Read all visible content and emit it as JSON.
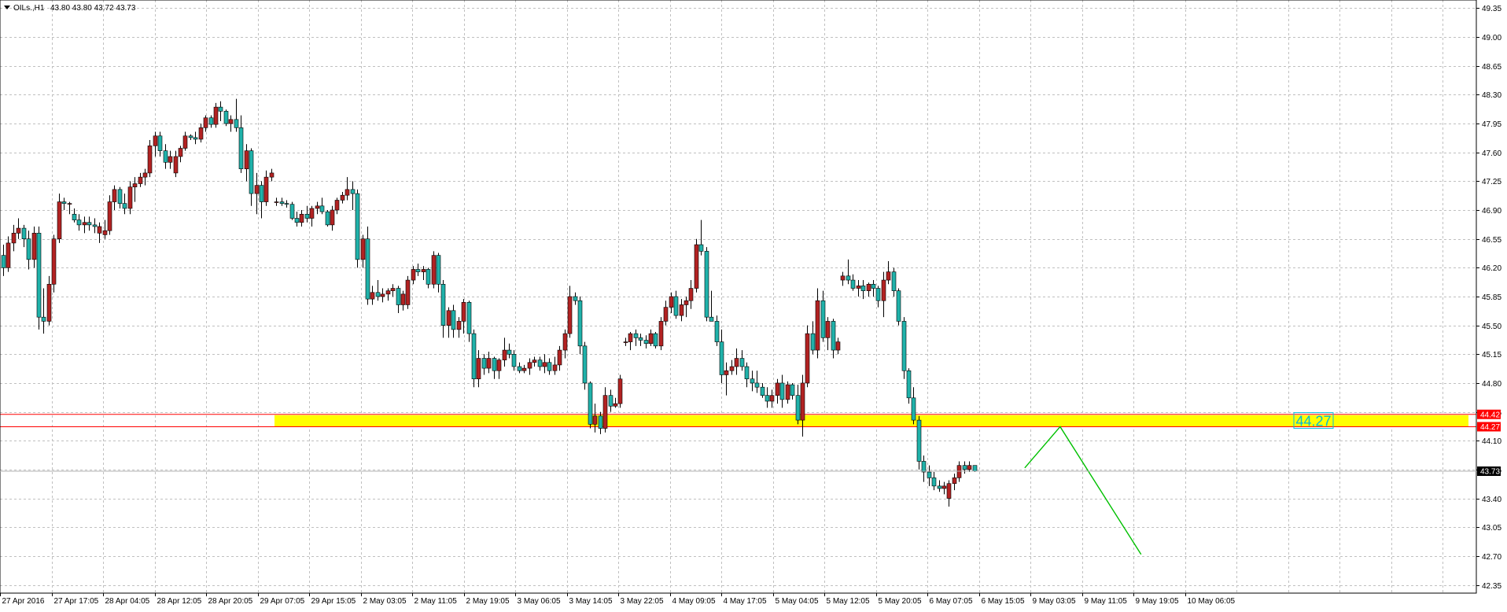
{
  "header": {
    "dropdown_icon": "triangle-down-icon",
    "symbol": "OILs.,H1",
    "ohlc": "43.80 43.80 43.72 43.73"
  },
  "chart_data": {
    "type": "candlestick",
    "symbol": "OILs.,H1",
    "timeframe": "H1",
    "title": "",
    "xlabel": "",
    "ylabel": "",
    "ylim": [
      42.25,
      49.45
    ],
    "y_ticks": [
      49.35,
      49.0,
      48.65,
      48.3,
      47.95,
      47.6,
      47.25,
      46.9,
      46.55,
      46.2,
      45.85,
      45.5,
      45.15,
      44.8,
      44.45,
      44.1,
      43.75,
      43.4,
      43.05,
      42.7,
      42.35
    ],
    "y_tick_labels": [
      "49.35",
      "49.00",
      "48.65",
      "48.30",
      "47.95",
      "47.60",
      "47.25",
      "46.90",
      "46.55",
      "46.20",
      "45.85",
      "45.50",
      "45.15",
      "44.80",
      "44.45",
      "44.10",
      "43.75",
      "43.40",
      "43.05",
      "42.70",
      "42.35"
    ],
    "x_tick_labels": [
      "27 Apr 2016",
      "27 Apr 17:05",
      "28 Apr 04:05",
      "28 Apr 12:05",
      "28 Apr 20:05",
      "29 Apr 07:05",
      "29 Apr 15:05",
      "2 May 03:05",
      "2 May 11:05",
      "2 May 19:05",
      "3 May 06:05",
      "3 May 14:05",
      "3 May 22:05",
      "4 May 09:05",
      "4 May 17:05",
      "5 May 04:05",
      "5 May 12:05",
      "5 May 20:05",
      "6 May 07:05",
      "6 May 15:05",
      "9 May 03:05",
      "9 May 11:05",
      "9 May 19:05",
      "10 May 06:05"
    ],
    "grid": true,
    "colors": {
      "up": "#b22222",
      "down": "#20b2aa",
      "zone": "#ffff00",
      "level_line": "#ff0000",
      "projection": "#00c000",
      "grid": "#c0c0c0"
    },
    "candles": [
      [
        46.35,
        46.48,
        46.1,
        46.2
      ],
      [
        46.2,
        46.58,
        46.15,
        46.5
      ],
      [
        46.5,
        46.72,
        46.4,
        46.62
      ],
      [
        46.62,
        46.8,
        46.55,
        46.68
      ],
      [
        46.68,
        46.72,
        46.45,
        46.55
      ],
      [
        46.55,
        46.65,
        46.18,
        46.3
      ],
      [
        46.3,
        46.7,
        46.2,
        46.62
      ],
      [
        46.62,
        46.7,
        45.45,
        45.6
      ],
      [
        45.6,
        45.95,
        45.4,
        45.55
      ],
      [
        45.55,
        46.1,
        45.5,
        46.0
      ],
      [
        46.0,
        46.6,
        45.9,
        46.55
      ],
      [
        46.55,
        47.1,
        46.5,
        47.0
      ],
      [
        47.0,
        47.05,
        46.9,
        46.98
      ],
      [
        46.98,
        47.0,
        46.85,
        46.98
      ],
      [
        46.85,
        46.92,
        46.75,
        46.78
      ],
      [
        46.78,
        46.85,
        46.65,
        46.72
      ],
      [
        46.72,
        46.82,
        46.62,
        46.75
      ],
      [
        46.75,
        46.82,
        46.65,
        46.72
      ],
      [
        46.72,
        46.8,
        46.62,
        46.7
      ],
      [
        46.62,
        46.75,
        46.5,
        46.7
      ],
      [
        46.6,
        46.78,
        46.55,
        46.65
      ],
      [
        46.65,
        47.08,
        46.6,
        47.0
      ],
      [
        47.0,
        47.2,
        46.9,
        47.15
      ],
      [
        47.15,
        47.18,
        46.92,
        46.98
      ],
      [
        46.98,
        47.1,
        46.85,
        46.92
      ],
      [
        46.92,
        47.25,
        46.85,
        47.18
      ],
      [
        47.18,
        47.3,
        47.0,
        47.22
      ],
      [
        47.22,
        47.35,
        47.18,
        47.3
      ],
      [
        47.3,
        47.4,
        47.2,
        47.35
      ],
      [
        47.35,
        47.75,
        47.3,
        47.68
      ],
      [
        47.68,
        47.85,
        47.55,
        47.8
      ],
      [
        47.8,
        47.85,
        47.55,
        47.62
      ],
      [
        47.62,
        47.7,
        47.4,
        47.48
      ],
      [
        47.48,
        47.62,
        47.4,
        47.55
      ],
      [
        47.35,
        47.62,
        47.3,
        47.55
      ],
      [
        47.55,
        47.68,
        47.48,
        47.65
      ],
      [
        47.65,
        47.85,
        47.62,
        47.8
      ],
      [
        47.8,
        47.82,
        47.75,
        47.78
      ],
      [
        47.78,
        47.85,
        47.7,
        47.76
      ],
      [
        47.76,
        47.95,
        47.72,
        47.9
      ],
      [
        47.9,
        48.05,
        47.85,
        48.02
      ],
      [
        48.02,
        48.05,
        47.9,
        47.94
      ],
      [
        47.94,
        48.2,
        47.9,
        48.15
      ],
      [
        48.15,
        48.22,
        47.98,
        48.1
      ],
      [
        48.1,
        48.12,
        47.92,
        47.95
      ],
      [
        47.95,
        48.05,
        47.85,
        48.0
      ],
      [
        48.0,
        48.25,
        47.85,
        47.9
      ],
      [
        47.9,
        48.05,
        47.35,
        47.4
      ],
      [
        47.4,
        47.7,
        47.25,
        47.62
      ],
      [
        47.62,
        47.65,
        46.95,
        47.1
      ],
      [
        47.1,
        47.35,
        46.85,
        47.2
      ],
      [
        47.2,
        47.25,
        46.8,
        47.0
      ],
      [
        47.0,
        47.38,
        46.95,
        47.3
      ],
      [
        47.3,
        47.4,
        47.25,
        47.35
      ],
      [
        47.0,
        47.05,
        46.95,
        47.0
      ],
      [
        47.0,
        47.05,
        46.95,
        46.98
      ],
      [
        46.98,
        47.02,
        46.93,
        46.97
      ],
      [
        46.97,
        47.0,
        46.78,
        46.8
      ],
      [
        46.8,
        46.88,
        46.7,
        46.75
      ],
      [
        46.75,
        46.9,
        46.7,
        46.85
      ],
      [
        46.85,
        46.95,
        46.75,
        46.8
      ],
      [
        46.8,
        46.95,
        46.7,
        46.92
      ],
      [
        46.92,
        47.0,
        46.85,
        46.95
      ],
      [
        46.95,
        47.05,
        46.85,
        46.88
      ],
      [
        46.88,
        46.9,
        46.7,
        46.72
      ],
      [
        46.72,
        46.95,
        46.65,
        46.9
      ],
      [
        46.9,
        47.05,
        46.85,
        47.02
      ],
      [
        47.02,
        47.12,
        46.98,
        47.08
      ],
      [
        47.08,
        47.3,
        47.02,
        47.15
      ],
      [
        47.15,
        47.25,
        46.9,
        47.1
      ],
      [
        47.1,
        47.15,
        46.2,
        46.3
      ],
      [
        46.3,
        46.6,
        46.2,
        46.55
      ],
      [
        46.55,
        46.7,
        45.75,
        45.82
      ],
      [
        45.82,
        45.98,
        45.75,
        45.9
      ],
      [
        45.9,
        46.05,
        45.8,
        45.85
      ],
      [
        45.85,
        45.95,
        45.78,
        45.88
      ],
      [
        45.88,
        45.95,
        45.8,
        45.92
      ],
      [
        45.92,
        46.0,
        45.85,
        45.95
      ],
      [
        45.95,
        45.98,
        45.65,
        45.75
      ],
      [
        45.75,
        45.92,
        45.68,
        45.88
      ],
      [
        45.75,
        46.1,
        45.7,
        46.05
      ],
      [
        46.05,
        46.22,
        46.0,
        46.18
      ],
      [
        46.18,
        46.25,
        46.1,
        46.15
      ],
      [
        46.15,
        46.22,
        46.05,
        46.18
      ],
      [
        46.18,
        46.2,
        45.95,
        46.0
      ],
      [
        46.0,
        46.4,
        45.95,
        46.35
      ],
      [
        46.35,
        46.38,
        45.9,
        46.0
      ],
      [
        46.0,
        46.05,
        45.35,
        45.5
      ],
      [
        45.5,
        45.72,
        45.35,
        45.68
      ],
      [
        45.68,
        45.75,
        45.35,
        45.45
      ],
      [
        45.45,
        45.6,
        45.35,
        45.55
      ],
      [
        45.55,
        45.82,
        45.4,
        45.78
      ],
      [
        45.78,
        45.8,
        45.3,
        45.4
      ],
      [
        45.4,
        45.45,
        44.75,
        44.85
      ],
      [
        44.85,
        45.2,
        44.75,
        45.1
      ],
      [
        45.1,
        45.15,
        44.9,
        44.98
      ],
      [
        44.98,
        45.18,
        44.92,
        45.1
      ],
      [
        45.1,
        45.12,
        44.85,
        44.95
      ],
      [
        44.95,
        45.1,
        44.85,
        45.08
      ],
      [
        45.08,
        45.35,
        45.0,
        45.2
      ],
      [
        45.2,
        45.28,
        45.1,
        45.15
      ],
      [
        45.15,
        45.2,
        44.95,
        45.0
      ],
      [
        45.0,
        45.05,
        44.92,
        44.95
      ],
      [
        44.95,
        45.02,
        44.92,
        44.98
      ],
      [
        44.98,
        45.1,
        44.9,
        45.05
      ],
      [
        45.05,
        45.12,
        45.0,
        45.08
      ],
      [
        45.08,
        45.12,
        44.95,
        45.0
      ],
      [
        45.0,
        45.15,
        44.92,
        45.05
      ],
      [
        45.05,
        45.1,
        44.9,
        44.95
      ],
      [
        44.95,
        45.12,
        44.9,
        45.02
      ],
      [
        45.02,
        45.25,
        44.95,
        45.2
      ],
      [
        45.2,
        45.45,
        45.1,
        45.4
      ],
      [
        45.4,
        45.98,
        45.35,
        45.85
      ],
      [
        45.85,
        45.9,
        45.75,
        45.8
      ],
      [
        45.8,
        45.85,
        45.15,
        45.25
      ],
      [
        45.25,
        45.3,
        44.72,
        44.8
      ],
      [
        44.8,
        44.82,
        44.25,
        44.3
      ],
      [
        44.3,
        44.55,
        44.2,
        44.4
      ],
      [
        44.4,
        44.45,
        44.18,
        44.25
      ],
      [
        44.25,
        44.75,
        44.2,
        44.65
      ],
      [
        44.65,
        44.72,
        44.45,
        44.52
      ],
      [
        44.52,
        44.62,
        44.5,
        44.55
      ],
      [
        44.55,
        44.9,
        44.5,
        44.85
      ],
      [
        45.3,
        45.35,
        45.25,
        45.3
      ],
      [
        45.3,
        45.42,
        45.2,
        45.4
      ],
      [
        45.4,
        45.45,
        45.25,
        45.35
      ],
      [
        45.35,
        45.4,
        45.25,
        45.32
      ],
      [
        45.32,
        45.38,
        45.22,
        45.28
      ],
      [
        45.28,
        45.45,
        45.25,
        45.4
      ],
      [
        45.4,
        45.42,
        45.22,
        45.25
      ],
      [
        45.25,
        45.6,
        45.2,
        45.55
      ],
      [
        45.55,
        45.8,
        45.5,
        45.72
      ],
      [
        45.72,
        45.9,
        45.65,
        45.85
      ],
      [
        45.85,
        45.92,
        45.58,
        45.62
      ],
      [
        45.62,
        45.82,
        45.55,
        45.75
      ],
      [
        45.75,
        45.85,
        45.6,
        45.8
      ],
      [
        45.8,
        46.05,
        45.7,
        45.95
      ],
      [
        45.95,
        46.55,
        45.9,
        46.48
      ],
      [
        46.48,
        46.78,
        46.35,
        46.4
      ],
      [
        46.4,
        46.45,
        45.55,
        45.6
      ],
      [
        45.6,
        45.92,
        45.55,
        45.55
      ],
      [
        45.55,
        45.62,
        45.25,
        45.3
      ],
      [
        45.3,
        45.45,
        44.8,
        44.9
      ],
      [
        44.9,
        45.05,
        44.65,
        44.95
      ],
      [
        44.95,
        45.08,
        44.9,
        45.0
      ],
      [
        45.0,
        45.22,
        44.9,
        45.1
      ],
      [
        45.1,
        45.2,
        44.95,
        45.0
      ],
      [
        45.0,
        45.05,
        44.75,
        44.85
      ],
      [
        44.85,
        44.95,
        44.7,
        44.8
      ],
      [
        44.8,
        44.95,
        44.68,
        44.75
      ],
      [
        44.75,
        44.8,
        44.62,
        44.65
      ],
      [
        44.65,
        44.75,
        44.5,
        44.58
      ],
      [
        44.58,
        44.72,
        44.5,
        44.65
      ],
      [
        44.65,
        44.85,
        44.55,
        44.8
      ],
      [
        44.8,
        44.9,
        44.5,
        44.6
      ],
      [
        44.6,
        44.82,
        44.55,
        44.78
      ],
      [
        44.78,
        44.8,
        44.6,
        44.65
      ],
      [
        44.65,
        44.78,
        44.3,
        44.35
      ],
      [
        44.35,
        44.9,
        44.15,
        44.8
      ],
      [
        44.8,
        45.5,
        44.75,
        45.4
      ],
      [
        45.4,
        45.55,
        45.15,
        45.2
      ],
      [
        45.2,
        45.95,
        45.1,
        45.8
      ],
      [
        45.8,
        45.92,
        45.3,
        45.35
      ],
      [
        45.35,
        45.6,
        45.2,
        45.55
      ],
      [
        45.55,
        45.58,
        45.1,
        45.2
      ],
      [
        45.2,
        45.35,
        45.15,
        45.3
      ],
      [
        46.05,
        46.15,
        45.98,
        46.1
      ],
      [
        46.1,
        46.3,
        46.0,
        46.05
      ],
      [
        46.05,
        46.12,
        45.92,
        45.95
      ],
      [
        45.95,
        46.05,
        45.85,
        45.98
      ],
      [
        45.98,
        46.05,
        45.82,
        45.92
      ],
      [
        45.92,
        46.02,
        45.85,
        46.0
      ],
      [
        46.0,
        46.05,
        45.85,
        45.95
      ],
      [
        45.95,
        45.98,
        45.72,
        45.8
      ],
      [
        45.8,
        46.15,
        45.6,
        46.05
      ],
      [
        46.05,
        46.28,
        46.0,
        46.15
      ],
      [
        46.15,
        46.2,
        45.85,
        45.92
      ],
      [
        45.92,
        45.95,
        45.5,
        45.55
      ],
      [
        45.55,
        45.6,
        44.85,
        44.95
      ],
      [
        44.95,
        44.98,
        44.55,
        44.62
      ],
      [
        44.62,
        44.75,
        44.3,
        44.35
      ],
      [
        44.35,
        44.4,
        43.75,
        43.85
      ],
      [
        43.85,
        43.92,
        43.6,
        43.72
      ],
      [
        43.72,
        43.8,
        43.55,
        43.65
      ],
      [
        43.65,
        43.72,
        43.5,
        43.55
      ],
      [
        43.55,
        43.62,
        43.48,
        43.52
      ],
      [
        43.52,
        43.6,
        43.45,
        43.55
      ],
      [
        43.4,
        43.62,
        43.3,
        43.58
      ],
      [
        43.58,
        43.7,
        43.5,
        43.65
      ],
      [
        43.65,
        43.85,
        43.6,
        43.8
      ],
      [
        43.8,
        43.85,
        43.7,
        43.75
      ],
      [
        43.75,
        43.85,
        43.72,
        43.8
      ],
      [
        43.8,
        43.8,
        43.72,
        43.73
      ]
    ],
    "support_zone": {
      "upper": 44.42,
      "lower": 44.27,
      "upper_label": "44.42",
      "lower_label": "44.27"
    },
    "current_price": {
      "value": 43.73,
      "label": "43.73"
    },
    "projection_label": "44.27",
    "projection_path": [
      {
        "candle_index": 202,
        "price": 43.77
      },
      {
        "candle_index": 209,
        "price": 44.27
      },
      {
        "candle_index": 225,
        "price": 42.72
      }
    ]
  }
}
